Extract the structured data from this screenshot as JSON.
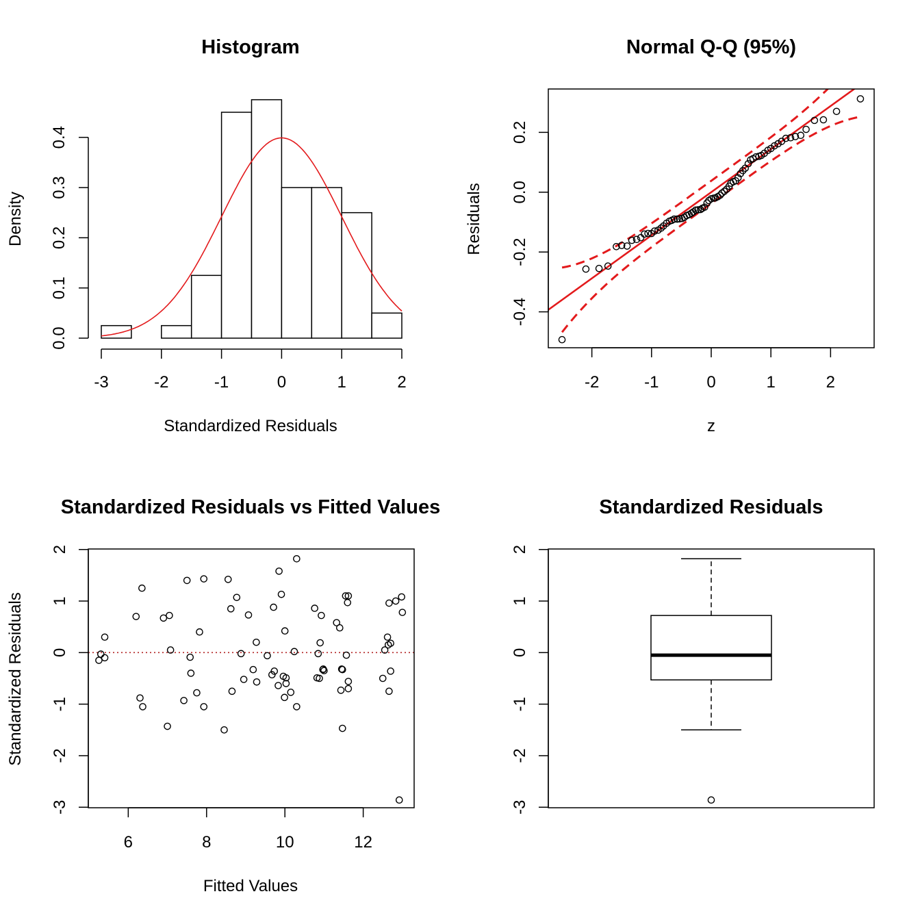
{
  "chart_data": [
    {
      "id": "hist",
      "type": "bar",
      "title": "Histogram",
      "xlabel": "Standardized Residuals",
      "ylabel": "Density",
      "xlim": [
        -3,
        2
      ],
      "ylim": [
        0,
        0.48
      ],
      "xticks": [
        "-3",
        "-2",
        "-1",
        "0",
        "1",
        "2"
      ],
      "yticks": [
        "0.0",
        "0.1",
        "0.2",
        "0.3",
        "0.4"
      ],
      "bins": [
        {
          "from": -3.0,
          "to": -2.5,
          "density": 0.025
        },
        {
          "from": -2.5,
          "to": -2.0,
          "density": 0.0
        },
        {
          "from": -2.0,
          "to": -1.5,
          "density": 0.025
        },
        {
          "from": -1.5,
          "to": -1.0,
          "density": 0.125
        },
        {
          "from": -1.0,
          "to": -0.5,
          "density": 0.45
        },
        {
          "from": -0.5,
          "to": 0.0,
          "density": 0.475
        },
        {
          "from": 0.0,
          "to": 0.5,
          "density": 0.3
        },
        {
          "from": 0.5,
          "to": 1.0,
          "density": 0.3
        },
        {
          "from": 1.0,
          "to": 1.5,
          "density": 0.25
        },
        {
          "from": 1.5,
          "to": 2.0,
          "density": 0.05
        }
      ],
      "curve": {
        "kind": "normal-density",
        "mean": 0,
        "sd": 1,
        "color": "#e31a1c"
      }
    },
    {
      "id": "qq",
      "type": "scatter",
      "title": "Normal Q-Q (95%)",
      "xlabel": "z",
      "ylabel": "Residuals",
      "xlim": [
        -2.73,
        2.73
      ],
      "ylim": [
        -0.52,
        0.345
      ],
      "xticks": [
        "-2",
        "-1",
        "0",
        "1",
        "2"
      ],
      "yticks": [
        "-0.4",
        "-0.2",
        "0.0",
        "0.2"
      ],
      "line_color": "#e31a1c",
      "ref_line": {
        "intercept": 0.0,
        "slope": 0.144
      },
      "band": {
        "se_base": 0.038,
        "se_scale": 0.07
      },
      "points": [
        [
          -2.5,
          -0.493
        ],
        [
          -2.1,
          -0.257
        ],
        [
          -1.88,
          -0.255
        ],
        [
          -1.73,
          -0.247
        ],
        [
          -1.59,
          -0.182
        ],
        [
          -1.5,
          -0.178
        ],
        [
          -1.41,
          -0.18
        ],
        [
          -1.33,
          -0.161
        ],
        [
          -1.25,
          -0.158
        ],
        [
          -1.18,
          -0.152
        ],
        [
          -1.12,
          -0.14
        ],
        [
          -1.06,
          -0.138
        ],
        [
          -1.0,
          -0.138
        ],
        [
          -0.95,
          -0.13
        ],
        [
          -0.89,
          -0.127
        ],
        [
          -0.84,
          -0.12
        ],
        [
          -0.8,
          -0.113
        ],
        [
          -0.75,
          -0.104
        ],
        [
          -0.7,
          -0.097
        ],
        [
          -0.66,
          -0.094
        ],
        [
          -0.62,
          -0.09
        ],
        [
          -0.57,
          -0.09
        ],
        [
          -0.53,
          -0.089
        ],
        [
          -0.49,
          -0.088
        ],
        [
          -0.45,
          -0.084
        ],
        [
          -0.41,
          -0.078
        ],
        [
          -0.37,
          -0.075
        ],
        [
          -0.33,
          -0.07
        ],
        [
          -0.3,
          -0.066
        ],
        [
          -0.26,
          -0.06
        ],
        [
          -0.22,
          -0.059
        ],
        [
          -0.18,
          -0.058
        ],
        [
          -0.15,
          -0.054
        ],
        [
          -0.11,
          -0.05
        ],
        [
          -0.07,
          -0.036
        ],
        [
          -0.04,
          -0.028
        ],
        [
          0.0,
          -0.022
        ],
        [
          0.04,
          -0.02
        ],
        [
          0.07,
          -0.019
        ],
        [
          0.11,
          -0.015
        ],
        [
          0.15,
          -0.01
        ],
        [
          0.18,
          -0.003
        ],
        [
          0.22,
          0.003
        ],
        [
          0.26,
          0.01
        ],
        [
          0.3,
          0.02
        ],
        [
          0.33,
          0.03
        ],
        [
          0.37,
          0.035
        ],
        [
          0.41,
          0.038
        ],
        [
          0.45,
          0.048
        ],
        [
          0.49,
          0.062
        ],
        [
          0.53,
          0.072
        ],
        [
          0.57,
          0.08
        ],
        [
          0.62,
          0.095
        ],
        [
          0.66,
          0.108
        ],
        [
          0.7,
          0.112
        ],
        [
          0.75,
          0.118
        ],
        [
          0.8,
          0.12
        ],
        [
          0.84,
          0.123
        ],
        [
          0.89,
          0.13
        ],
        [
          0.95,
          0.14
        ],
        [
          1.0,
          0.146
        ],
        [
          1.06,
          0.155
        ],
        [
          1.12,
          0.162
        ],
        [
          1.18,
          0.17
        ],
        [
          1.25,
          0.18
        ],
        [
          1.33,
          0.182
        ],
        [
          1.41,
          0.186
        ],
        [
          1.5,
          0.19
        ],
        [
          1.59,
          0.21
        ],
        [
          1.73,
          0.24
        ],
        [
          1.88,
          0.242
        ],
        [
          2.1,
          0.27
        ],
        [
          2.5,
          0.312
        ]
      ]
    },
    {
      "id": "resfit",
      "type": "scatter",
      "title": "Standardized Residuals vs Fitted Values",
      "xlabel": "Fitted Values",
      "ylabel": "Standardized Residuals",
      "xlim": [
        4.98,
        13.3
      ],
      "ylim": [
        -3.01,
        2.01
      ],
      "xticks": [
        "6",
        "8",
        "10",
        "12"
      ],
      "yticks": [
        "-3",
        "-2",
        "-1",
        "0",
        "1",
        "2"
      ],
      "hline": {
        "y": 0,
        "color": "#b22222",
        "style": "dotted"
      },
      "points": [
        [
          5.25,
          -0.15
        ],
        [
          5.3,
          -0.03
        ],
        [
          5.4,
          0.3
        ],
        [
          5.4,
          -0.1
        ],
        [
          6.2,
          0.7
        ],
        [
          6.3,
          -0.88
        ],
        [
          6.35,
          1.25
        ],
        [
          6.37,
          -1.05
        ],
        [
          6.9,
          0.67
        ],
        [
          7.0,
          -1.43
        ],
        [
          7.05,
          0.72
        ],
        [
          7.08,
          0.05
        ],
        [
          7.42,
          -0.93
        ],
        [
          7.5,
          1.4
        ],
        [
          7.58,
          -0.09
        ],
        [
          7.6,
          -0.4
        ],
        [
          7.75,
          -0.78
        ],
        [
          7.82,
          0.4
        ],
        [
          7.93,
          1.43
        ],
        [
          7.93,
          -1.05
        ],
        [
          8.45,
          -1.5
        ],
        [
          8.55,
          1.42
        ],
        [
          8.62,
          0.85
        ],
        [
          8.65,
          -0.75
        ],
        [
          8.77,
          1.07
        ],
        [
          8.88,
          -0.02
        ],
        [
          8.95,
          -0.52
        ],
        [
          9.07,
          0.73
        ],
        [
          9.19,
          -0.33
        ],
        [
          9.27,
          0.2
        ],
        [
          9.28,
          -0.57
        ],
        [
          9.55,
          -0.06
        ],
        [
          9.67,
          -0.43
        ],
        [
          9.71,
          0.88
        ],
        [
          9.73,
          -0.36
        ],
        [
          9.83,
          -0.64
        ],
        [
          9.85,
          1.58
        ],
        [
          9.91,
          1.13
        ],
        [
          9.96,
          -0.46
        ],
        [
          9.99,
          -0.87
        ],
        [
          10.0,
          0.42
        ],
        [
          10.03,
          -0.49
        ],
        [
          10.03,
          -0.6
        ],
        [
          10.15,
          -0.77
        ],
        [
          10.24,
          0.02
        ],
        [
          10.3,
          -1.05
        ],
        [
          10.3,
          1.82
        ],
        [
          10.76,
          0.86
        ],
        [
          10.82,
          -0.49
        ],
        [
          10.85,
          -0.02
        ],
        [
          10.88,
          -0.5
        ],
        [
          10.9,
          0.19
        ],
        [
          10.93,
          0.72
        ],
        [
          10.97,
          -0.33
        ],
        [
          10.98,
          -0.32
        ],
        [
          11.0,
          -0.35
        ],
        [
          11.32,
          0.58
        ],
        [
          11.4,
          0.48
        ],
        [
          11.43,
          -0.73
        ],
        [
          11.45,
          -0.32
        ],
        [
          11.47,
          -0.33
        ],
        [
          11.47,
          -1.47
        ],
        [
          11.55,
          1.1
        ],
        [
          11.57,
          -0.05
        ],
        [
          11.6,
          0.97
        ],
        [
          11.62,
          1.1
        ],
        [
          11.62,
          -0.56
        ],
        [
          11.62,
          -0.7
        ],
        [
          12.5,
          -0.5
        ],
        [
          12.55,
          0.05
        ],
        [
          12.62,
          0.3
        ],
        [
          12.64,
          0.15
        ],
        [
          12.66,
          0.96
        ],
        [
          12.66,
          -0.75
        ],
        [
          12.7,
          0.18
        ],
        [
          12.7,
          -0.36
        ],
        [
          12.83,
          1.0
        ],
        [
          12.92,
          -2.86
        ],
        [
          12.98,
          1.08
        ],
        [
          13.0,
          0.78
        ]
      ]
    },
    {
      "id": "box",
      "type": "box",
      "title": "Standardized Residuals",
      "ylim": [
        -3.01,
        2.01
      ],
      "yticks": [
        "-3",
        "-2",
        "-1",
        "0",
        "1",
        "2"
      ],
      "stats": {
        "lower_whisker": -1.5,
        "q1": -0.53,
        "median": -0.05,
        "q3": 0.72,
        "upper_whisker": 1.82
      },
      "outliers": [
        -2.86
      ]
    }
  ]
}
